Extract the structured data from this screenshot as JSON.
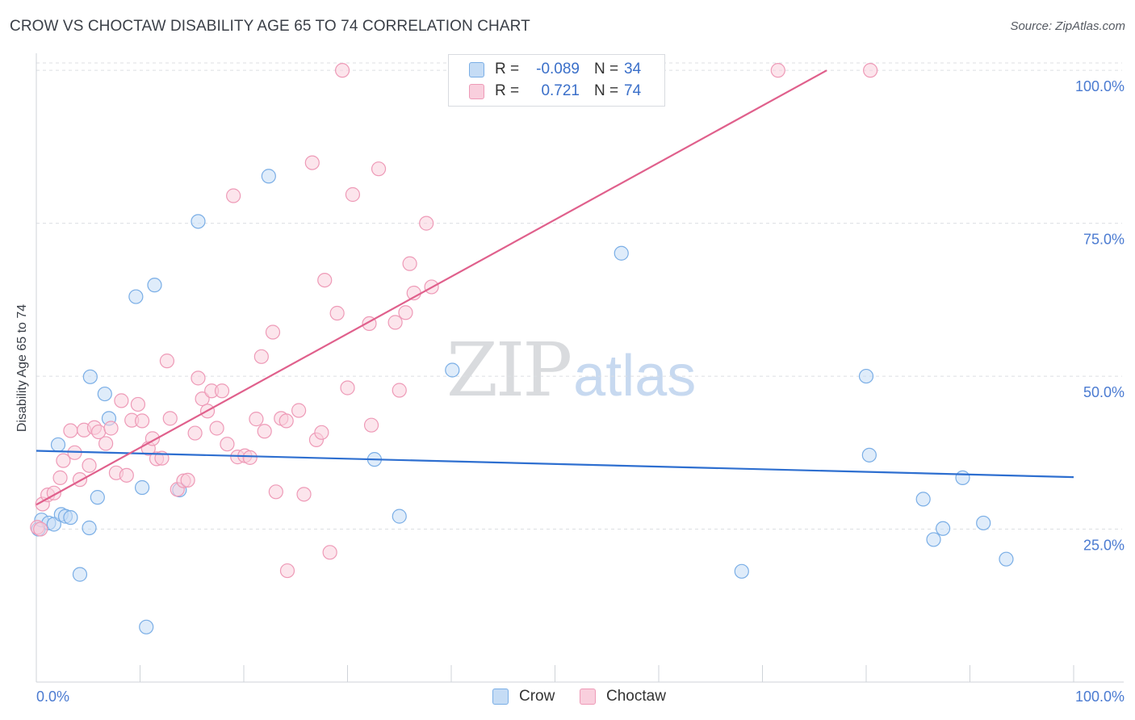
{
  "chart_data": {
    "type": "scatter",
    "title": "CROW VS CHOCTAW DISABILITY AGE 65 TO 74 CORRELATION CHART",
    "source": "Source: ZipAtlas.com",
    "xlabel": "",
    "ylabel": "Disability Age 65 to 74",
    "xlim": [
      0,
      100
    ],
    "ylim": [
      0,
      102
    ],
    "x_tick_labels": [
      "0.0%",
      "100.0%"
    ],
    "y_ticks": [
      25,
      50,
      75,
      100
    ],
    "y_tick_labels": [
      "25.0%",
      "50.0%",
      "75.0%",
      "100.0%"
    ],
    "grid": true,
    "watermark": {
      "zip": "ZIP",
      "atlas": "atlas"
    },
    "legend": {
      "position": "top-center",
      "rows": [
        {
          "r_label": "R =",
          "r_value": "-0.089",
          "n_label": "N =",
          "n_value": "34"
        },
        {
          "r_label": "R =",
          "r_value": "0.721",
          "n_label": "N =",
          "n_value": "74"
        }
      ]
    },
    "series": [
      {
        "name": "Crow",
        "color": "#7aaee6",
        "fill": "#c5dcf5",
        "trend_color": "#2e6fd0",
        "trend": {
          "x0": 0,
          "y0": 37.8,
          "x1": 100,
          "y1": 33.5
        },
        "points": [
          [
            0.2,
            25.0
          ],
          [
            0.5,
            26.5
          ],
          [
            1.2,
            26.0
          ],
          [
            1.7,
            25.8
          ],
          [
            2.1,
            38.8
          ],
          [
            2.4,
            27.4
          ],
          [
            2.8,
            27.1
          ],
          [
            3.3,
            26.9
          ],
          [
            4.2,
            17.6
          ],
          [
            5.1,
            25.2
          ],
          [
            5.2,
            49.9
          ],
          [
            5.9,
            30.2
          ],
          [
            6.6,
            47.1
          ],
          [
            7.0,
            43.1
          ],
          [
            9.6,
            63.0
          ],
          [
            10.2,
            31.8
          ],
          [
            10.6,
            9.0
          ],
          [
            11.4,
            64.9
          ],
          [
            13.8,
            31.4
          ],
          [
            15.6,
            75.3
          ],
          [
            22.4,
            82.7
          ],
          [
            32.6,
            36.4
          ],
          [
            35.0,
            27.1
          ],
          [
            40.1,
            51.0
          ],
          [
            56.4,
            70.1
          ],
          [
            68.0,
            18.1
          ],
          [
            80.3,
            37.1
          ],
          [
            80.0,
            50.0
          ],
          [
            85.5,
            29.9
          ],
          [
            86.5,
            23.3
          ],
          [
            87.4,
            25.1
          ],
          [
            89.3,
            33.4
          ],
          [
            91.3,
            26.0
          ],
          [
            93.5,
            20.1
          ]
        ]
      },
      {
        "name": "Choctaw",
        "color": "#ee9ab7",
        "fill": "#f9cfdd",
        "trend_color": "#e0608c",
        "trend": {
          "x0": 0,
          "y0": 29.0,
          "x1": 76.2,
          "y1": 100
        },
        "points": [
          [
            0.1,
            25.3
          ],
          [
            0.6,
            29.1
          ],
          [
            1.1,
            30.6
          ],
          [
            1.7,
            30.9
          ],
          [
            2.3,
            33.4
          ],
          [
            2.6,
            36.2
          ],
          [
            3.3,
            41.1
          ],
          [
            3.7,
            37.5
          ],
          [
            4.2,
            33.1
          ],
          [
            4.6,
            41.2
          ],
          [
            5.1,
            35.4
          ],
          [
            5.6,
            41.6
          ],
          [
            6.0,
            40.9
          ],
          [
            6.7,
            39.0
          ],
          [
            7.2,
            41.5
          ],
          [
            7.7,
            34.2
          ],
          [
            8.2,
            46.0
          ],
          [
            8.7,
            33.8
          ],
          [
            9.2,
            42.8
          ],
          [
            9.8,
            45.4
          ],
          [
            10.2,
            42.7
          ],
          [
            10.8,
            38.2
          ],
          [
            11.2,
            39.8
          ],
          [
            11.6,
            36.5
          ],
          [
            12.1,
            36.6
          ],
          [
            12.6,
            52.5
          ],
          [
            12.9,
            43.1
          ],
          [
            13.6,
            31.5
          ],
          [
            14.2,
            32.9
          ],
          [
            14.6,
            33.0
          ],
          [
            15.3,
            40.7
          ],
          [
            15.6,
            49.7
          ],
          [
            16.0,
            46.3
          ],
          [
            16.5,
            44.3
          ],
          [
            16.9,
            47.6
          ],
          [
            17.4,
            41.5
          ],
          [
            17.9,
            47.6
          ],
          [
            18.4,
            38.9
          ],
          [
            19.0,
            79.5
          ],
          [
            19.4,
            36.8
          ],
          [
            20.1,
            37.0
          ],
          [
            20.6,
            36.7
          ],
          [
            21.2,
            43.0
          ],
          [
            21.7,
            53.2
          ],
          [
            22.0,
            41.0
          ],
          [
            22.8,
            57.2
          ],
          [
            23.1,
            31.1
          ],
          [
            23.6,
            43.1
          ],
          [
            24.1,
            42.7
          ],
          [
            25.3,
            44.4
          ],
          [
            25.8,
            30.7
          ],
          [
            26.6,
            84.9
          ],
          [
            27.0,
            39.6
          ],
          [
            27.5,
            40.8
          ],
          [
            27.8,
            65.7
          ],
          [
            28.3,
            21.2
          ],
          [
            29.0,
            60.3
          ],
          [
            29.5,
            100.0
          ],
          [
            30.0,
            48.1
          ],
          [
            30.5,
            79.7
          ],
          [
            32.1,
            58.6
          ],
          [
            32.3,
            42.0
          ],
          [
            33.0,
            83.9
          ],
          [
            34.6,
            58.8
          ],
          [
            35.0,
            47.7
          ],
          [
            35.6,
            60.4
          ],
          [
            36.0,
            68.4
          ],
          [
            36.4,
            63.6
          ],
          [
            37.6,
            75.0
          ],
          [
            38.1,
            64.6
          ],
          [
            24.2,
            18.2
          ],
          [
            71.5,
            100.0
          ],
          [
            80.4,
            100.0
          ],
          [
            0.4,
            25.0
          ]
        ]
      }
    ]
  }
}
